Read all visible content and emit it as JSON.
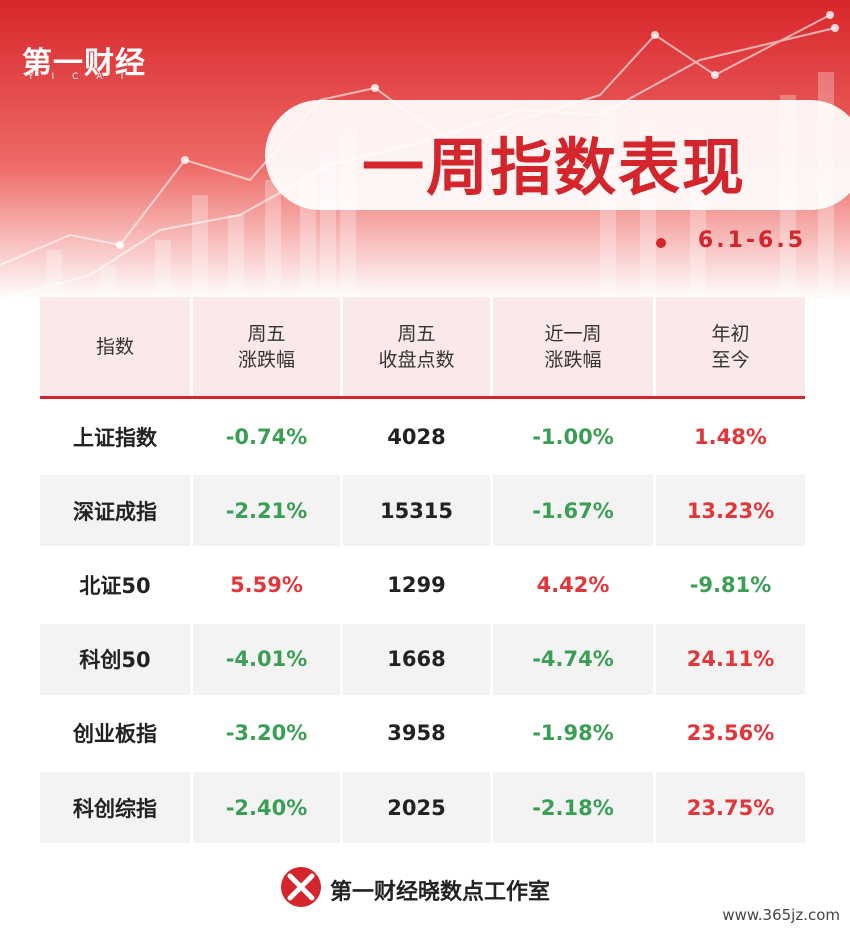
{
  "brand": {
    "logo": "第一财经",
    "logo_sub": "YICAI"
  },
  "header": {
    "title": "一周指数表现",
    "date": "6.1-6.5"
  },
  "table": {
    "up_color": "#e2363a",
    "down_color": "#3a9f55",
    "columns": [
      [
        "指数"
      ],
      [
        "周五",
        "涨跌幅"
      ],
      [
        "周五",
        "收盘点数"
      ],
      [
        "近一周",
        "涨跌幅"
      ],
      [
        "年初",
        "至今"
      ]
    ],
    "rows": [
      [
        "上证指数",
        "-0.74%",
        "4028",
        "-1.00%",
        "1.48%"
      ],
      [
        "深证成指",
        "-2.21%",
        "15315",
        "-1.67%",
        "13.23%"
      ],
      [
        "北证50",
        "5.59%",
        "1299",
        "4.42%",
        "-9.81%"
      ],
      [
        "科创50",
        "-4.01%",
        "1668",
        "-4.74%",
        "24.11%"
      ],
      [
        "创业板指",
        "-3.20%",
        "3958",
        "-1.98%",
        "23.56%"
      ],
      [
        "科创综指",
        "-2.40%",
        "2025",
        "-2.18%",
        "23.75%"
      ]
    ]
  },
  "footer": {
    "source": "第一财经晓数点工作室",
    "watermark": "www.365jz.com"
  }
}
